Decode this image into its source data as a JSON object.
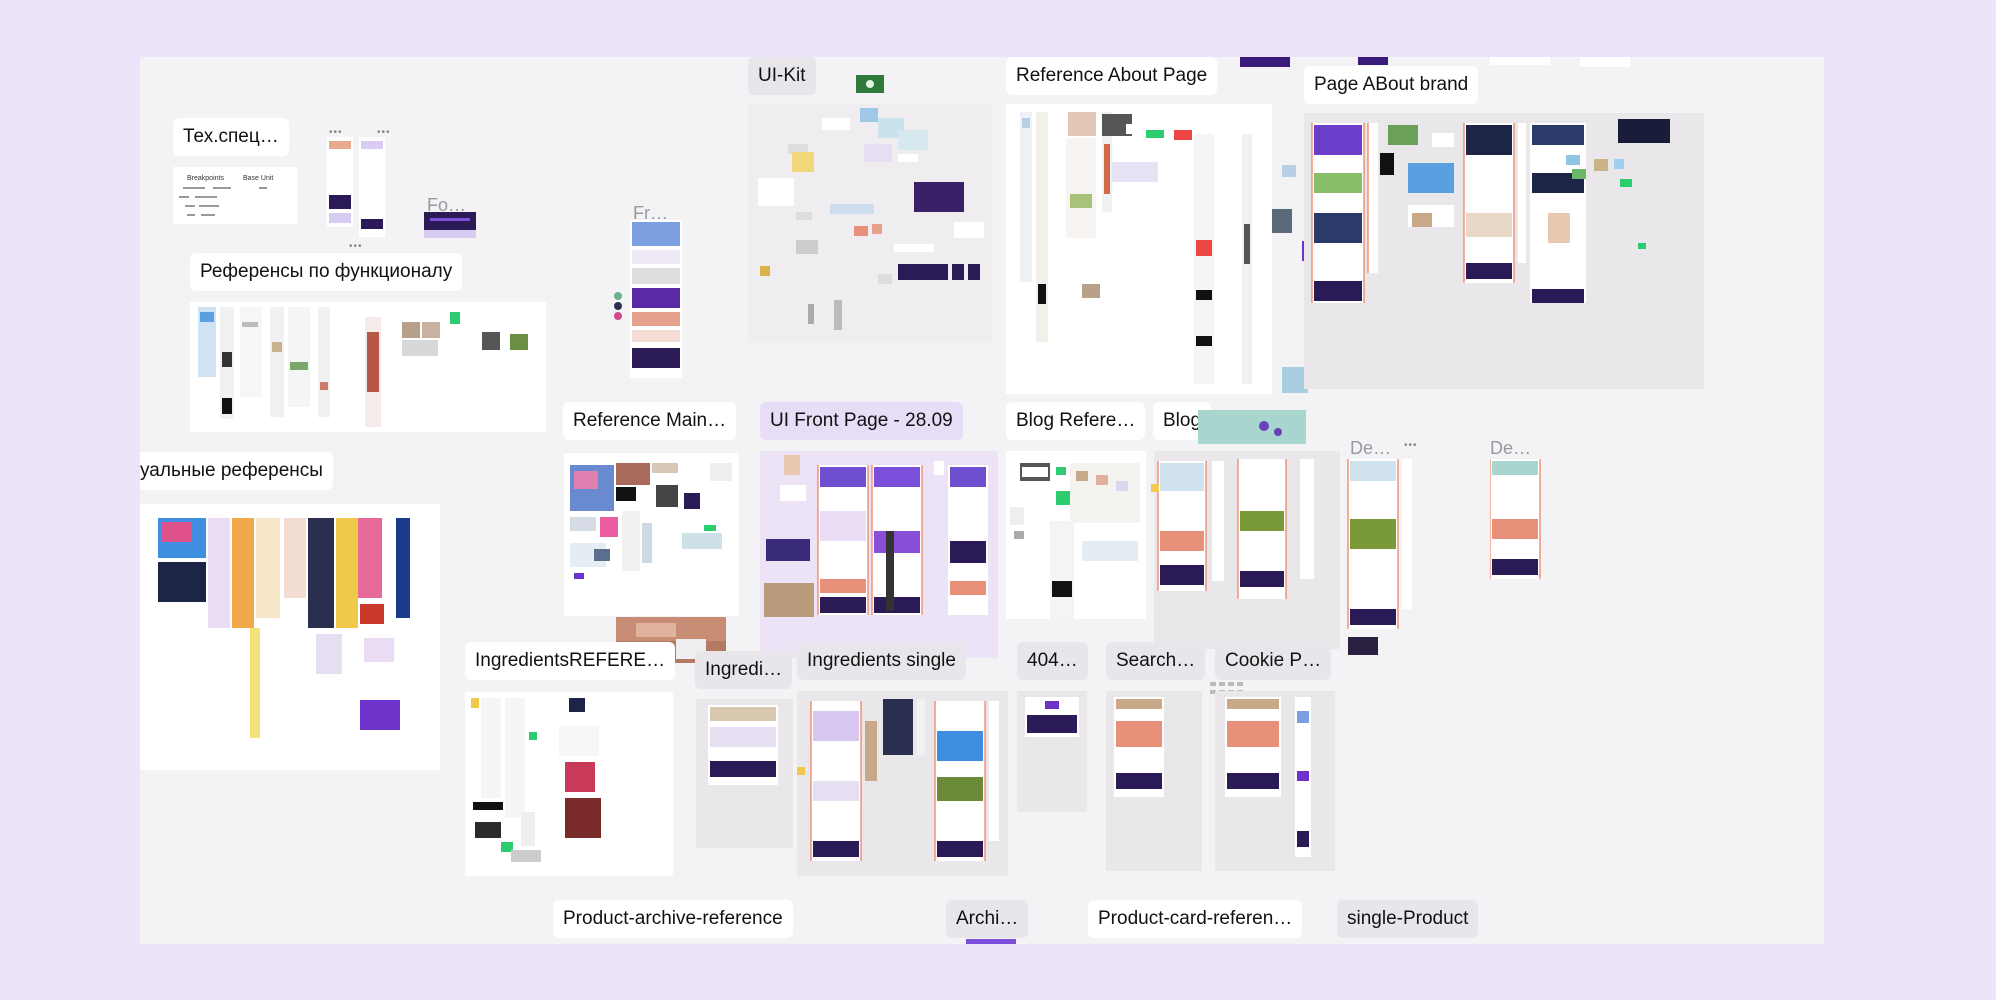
{
  "canvas": {
    "background": "#f3f2f4",
    "page_background": "#ebe4fb"
  },
  "labels": {
    "ui_kit": "UI-Kit",
    "reference_about": "Reference About Page",
    "page_about_brand": "Page ABout brand",
    "tech_spec": "Тех.спец…",
    "fo": "Fo…",
    "fr": "Fr…",
    "func_refs": "Референсы по функционалу",
    "reference_main": "Reference Main…",
    "ui_front_page": "UI Front Page - 28.09",
    "blog_reference": "Blog Refere…",
    "blog": "Blog",
    "de1": "De…",
    "de2": "De…",
    "visual_refs": "уальные референсы",
    "ingredients_reference": "IngredientsREFERE…",
    "ingredi": "Ingredi…",
    "ingredients_single": "Ingredients single",
    "p404": "404…",
    "search": "Search…",
    "cookie": "Cookie P…",
    "product_archive_ref": "Product-archive-reference",
    "archi": "Archi…",
    "product_card_ref": "Product-card-referen…",
    "single_product": "single-Product"
  },
  "tech_spec_table": {
    "col1": "Breakpoints",
    "col2": "Base Unit"
  },
  "icons": {
    "dots": "ellipsis-icon"
  },
  "colors": {
    "dark_purple": "#2a1a55",
    "violet": "#7b4fd9",
    "green": "#2ecc71",
    "salmon": "#e8917a",
    "orange_line": "#e8643c",
    "yellow": "#f2e27a"
  }
}
